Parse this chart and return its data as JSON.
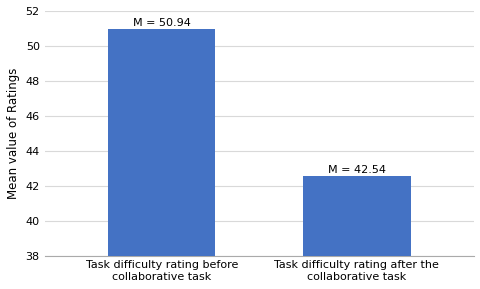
{
  "categories": [
    "Task difficulty rating before\ncollaborative task",
    "Task difficulty rating after the\ncollaborative task"
  ],
  "values": [
    50.94,
    42.54
  ],
  "bar_bottom": 38,
  "labels": [
    "M = 50.94",
    "M = 42.54"
  ],
  "bar_color": "#4472C4",
  "ylabel": "Mean value of Ratings",
  "ylim": [
    38,
    52
  ],
  "yticks": [
    38,
    40,
    42,
    44,
    46,
    48,
    50,
    52
  ],
  "background_color": "#ffffff",
  "grid_color": "#d9d9d9",
  "label_fontsize": 8.0,
  "ylabel_fontsize": 8.5,
  "tick_fontsize": 8.0,
  "bar_width": 0.55,
  "x_positions": [
    0,
    1
  ]
}
